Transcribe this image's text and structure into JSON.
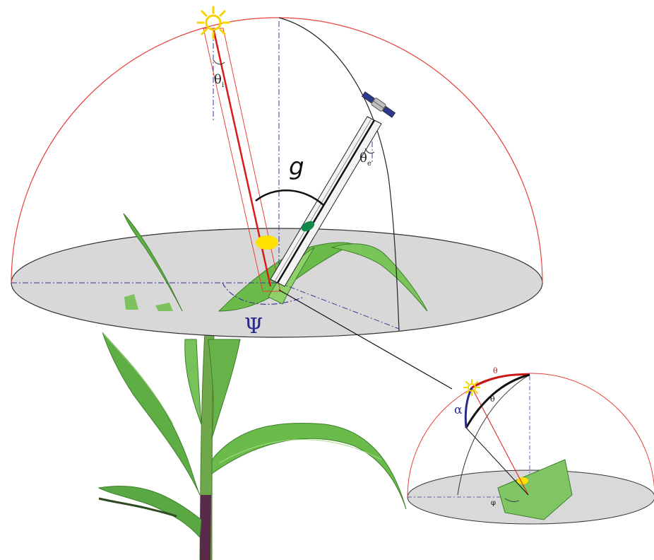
{
  "labels": {
    "theta_sun": "θ",
    "theta_sun_sub": "i",
    "theta_view": "θ",
    "theta_view_sub": "e",
    "phase_angle": "g",
    "azimuth": "Ψ",
    "inset_theta_red": "θ",
    "inset_theta_black": "θ",
    "inset_alpha": "α",
    "inset_phi": "φ"
  },
  "colors": {
    "hemisphere_outline": "#e8403a",
    "ground_fill": "#d8d8d8",
    "sun": "#f5d400",
    "sun_ray": "#d91a1a",
    "sun_spot": "#ffe000",
    "sensor_spot": "#0f8a4a",
    "azimuth_label": "#2a2a8c",
    "leaf_green": "#4fa83a",
    "stem_purple": "#5a2a4a"
  },
  "icons": {
    "sun": "sun-icon",
    "satellite": "satellite-icon",
    "plant": "maize-plant-illustration"
  }
}
